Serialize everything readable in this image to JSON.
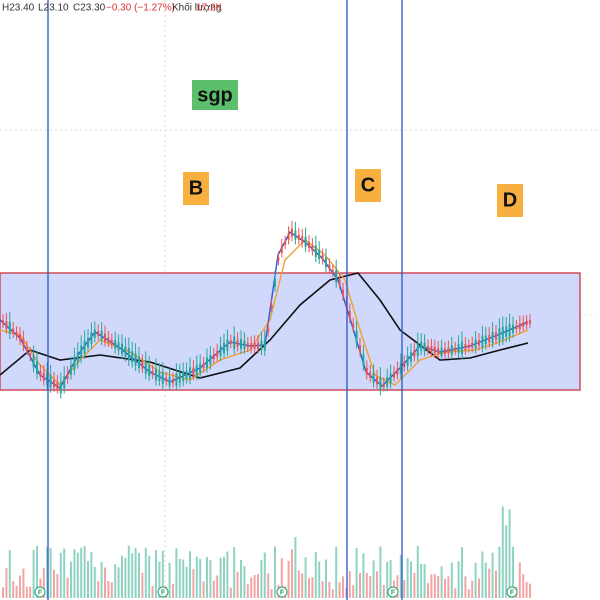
{
  "header": {
    "high": "H23.40",
    "low": "L23.10",
    "close": "C23.30",
    "change": "−0.30 (−1.27%)",
    "volume_label": "Khối lượng",
    "volume": "17.2K"
  },
  "labels": {
    "sgp": "sgp",
    "b": "B",
    "c": "C",
    "d": "D"
  },
  "markers": [
    "F",
    "F",
    "F",
    "F",
    "F"
  ]
}
